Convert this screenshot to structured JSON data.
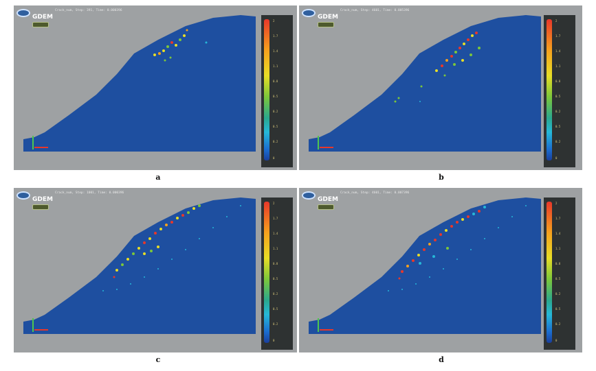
{
  "panels": [
    {
      "id": "a",
      "caption": "a",
      "status": "Crack_num, Step: 391, Time: 0.000396"
    },
    {
      "id": "b",
      "caption": "b",
      "status": "Crack_num, Step: 4601, Time: 0.005396"
    },
    {
      "id": "c",
      "caption": "c",
      "status": "Crack_num, Step: 1001, Time: 0.000396"
    },
    {
      "id": "d",
      "caption": "d",
      "status": "Crack_num, Step: 4601, Time: 0.007396"
    }
  ],
  "app": {
    "logo_text": "GDEM"
  },
  "legend": {
    "ticks": [
      "2",
      "1.7",
      "1.4",
      "1.1",
      "0.8",
      "0.5",
      "0.2",
      "0.5",
      "0.2",
      "0"
    ]
  },
  "colors": {
    "background": "#9ea1a3",
    "slope": "#1e4fa0",
    "legend_bg": "#2e3232"
  }
}
